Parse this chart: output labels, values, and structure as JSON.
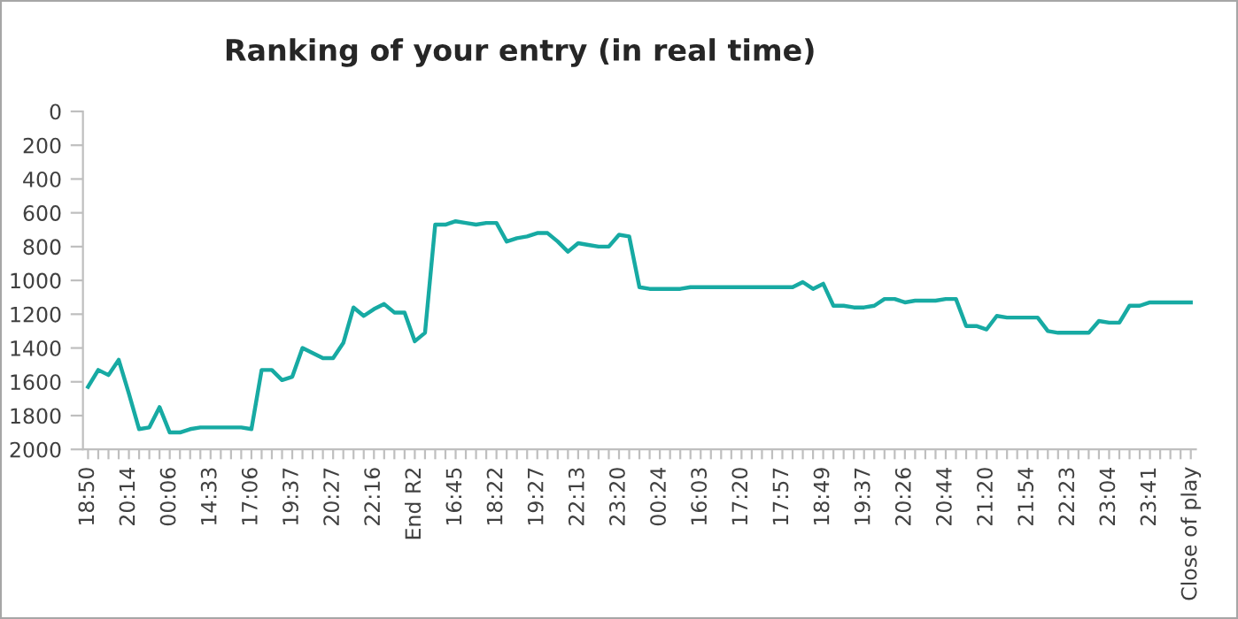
{
  "chart_data": {
    "type": "line",
    "title": "Ranking of your entry (in real time)",
    "categories": [
      "18:50",
      null,
      null,
      null,
      "20:14",
      null,
      null,
      null,
      "00:06",
      null,
      null,
      null,
      "14:33",
      null,
      null,
      null,
      "17:06",
      null,
      null,
      null,
      "19:37",
      null,
      null,
      null,
      "20:27",
      null,
      null,
      null,
      "22:16",
      null,
      null,
      null,
      "End R2",
      null,
      null,
      null,
      "16:45",
      null,
      null,
      null,
      "18:22",
      null,
      null,
      null,
      "19:27",
      null,
      null,
      null,
      "22:13",
      null,
      null,
      null,
      "23:20",
      null,
      null,
      null,
      "00:24",
      null,
      null,
      null,
      "16:03",
      null,
      null,
      null,
      "17:20",
      null,
      null,
      null,
      "17:57",
      null,
      null,
      null,
      "18:49",
      null,
      null,
      null,
      "19:37",
      null,
      null,
      null,
      "20:26",
      null,
      null,
      null,
      "20:44",
      null,
      null,
      null,
      "21:20",
      null,
      null,
      null,
      "21:54",
      null,
      null,
      null,
      "22:23",
      null,
      null,
      null,
      "23:04",
      null,
      null,
      null,
      "23:41",
      null,
      null,
      null,
      "Close of play"
    ],
    "series": [
      {
        "color": "#17aaa3",
        "values": [
          1630,
          1530,
          1560,
          1470,
          1670,
          1880,
          1870,
          1750,
          1900,
          1900,
          1880,
          1870,
          1870,
          1870,
          1870,
          1870,
          1880,
          1530,
          1530,
          1590,
          1570,
          1400,
          1430,
          1460,
          1460,
          1370,
          1160,
          1210,
          1170,
          1140,
          1190,
          1190,
          1360,
          1310,
          670,
          670,
          650,
          660,
          670,
          660,
          660,
          770,
          750,
          740,
          720,
          720,
          770,
          830,
          780,
          790,
          800,
          800,
          730,
          740,
          1040,
          1050,
          1050,
          1050,
          1050,
          1040,
          1040,
          1040,
          1040,
          1040,
          1040,
          1040,
          1040,
          1040,
          1040,
          1040,
          1010,
          1050,
          1020,
          1150,
          1150,
          1160,
          1160,
          1150,
          1110,
          1110,
          1130,
          1120,
          1120,
          1120,
          1110,
          1110,
          1270,
          1270,
          1290,
          1210,
          1220,
          1220,
          1220,
          1220,
          1300,
          1310,
          1310,
          1310,
          1310,
          1240,
          1250,
          1250,
          1150,
          1150,
          1130,
          1130,
          1130,
          1130,
          1130
        ]
      }
    ],
    "ylim": [
      2000,
      0
    ],
    "yticks": [
      0,
      200,
      400,
      600,
      800,
      1000,
      1200,
      1400,
      1600,
      1800,
      2000
    ],
    "marker": "none",
    "line_style": "solid"
  }
}
